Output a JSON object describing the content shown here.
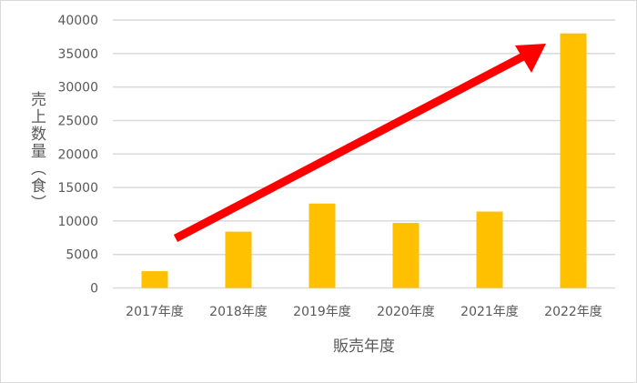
{
  "chart_data": {
    "type": "bar",
    "title": "",
    "xlabel": "販売年度",
    "ylabel": "売上数量（食）",
    "categories": [
      "2017年度",
      "2018年度",
      "2019年度",
      "2020年度",
      "2021年度",
      "2022年度"
    ],
    "values": [
      2500,
      8400,
      12600,
      9700,
      11400,
      38000
    ],
    "ylim": [
      0,
      40000
    ],
    "yticks": [
      0,
      5000,
      10000,
      15000,
      20000,
      25000,
      30000,
      35000,
      40000
    ],
    "grid": true,
    "legend": "none",
    "colors": {
      "bar": "#FFC000",
      "grid": "#D9D9D9",
      "arrow": "#FF0000",
      "border": "#D9D9D9"
    },
    "annotations": [
      {
        "type": "arrow",
        "description_icon": "trend-up-arrow"
      }
    ]
  }
}
